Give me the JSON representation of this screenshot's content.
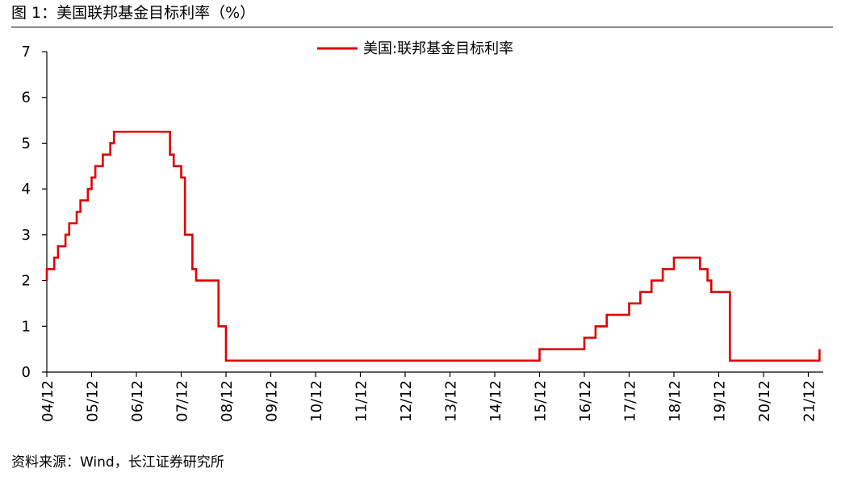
{
  "figure": {
    "title": "图 1：美国联邦基金目标利率（%）",
    "source": "资料来源：Wind，长江证券研究所"
  },
  "chart_data": {
    "type": "line",
    "title": "",
    "xlabel": "",
    "ylabel": "",
    "ylim": [
      0,
      7
    ],
    "yticks": [
      0,
      1,
      2,
      3,
      4,
      5,
      6,
      7
    ],
    "xlim": [
      "2004-12",
      "2022-04"
    ],
    "xticks": [
      "04/12",
      "05/12",
      "06/12",
      "07/12",
      "08/12",
      "09/12",
      "10/12",
      "11/12",
      "12/12",
      "13/12",
      "14/12",
      "15/12",
      "16/12",
      "17/12",
      "18/12",
      "19/12",
      "20/12",
      "21/12"
    ],
    "grid": false,
    "legend": "top-center",
    "step": true,
    "series": [
      {
        "name": "美国:联邦基金目标利率",
        "color": "#e00000",
        "points": [
          [
            "2004-12",
            2.0
          ],
          [
            "2004-12",
            2.25
          ],
          [
            "2005-02",
            2.5
          ],
          [
            "2005-03",
            2.75
          ],
          [
            "2005-05",
            3.0
          ],
          [
            "2005-06",
            3.25
          ],
          [
            "2005-08",
            3.5
          ],
          [
            "2005-09",
            3.75
          ],
          [
            "2005-11",
            4.0
          ],
          [
            "2005-12",
            4.25
          ],
          [
            "2006-01",
            4.5
          ],
          [
            "2006-03",
            4.75
          ],
          [
            "2006-05",
            5.0
          ],
          [
            "2006-06",
            5.25
          ],
          [
            "2007-09",
            4.75
          ],
          [
            "2007-10",
            4.5
          ],
          [
            "2007-12",
            4.25
          ],
          [
            "2008-01",
            3.5
          ],
          [
            "2008-01",
            3.0
          ],
          [
            "2008-03",
            2.25
          ],
          [
            "2008-04",
            2.0
          ],
          [
            "2008-10",
            1.5
          ],
          [
            "2008-10",
            1.0
          ],
          [
            "2008-12",
            0.25
          ],
          [
            "2015-12",
            0.5
          ],
          [
            "2016-12",
            0.75
          ],
          [
            "2017-03",
            1.0
          ],
          [
            "2017-06",
            1.25
          ],
          [
            "2017-12",
            1.5
          ],
          [
            "2018-03",
            1.75
          ],
          [
            "2018-06",
            2.0
          ],
          [
            "2018-09",
            2.25
          ],
          [
            "2018-12",
            2.5
          ],
          [
            "2019-07",
            2.25
          ],
          [
            "2019-09",
            2.0
          ],
          [
            "2019-10",
            1.75
          ],
          [
            "2020-03",
            1.25
          ],
          [
            "2020-03",
            0.25
          ],
          [
            "2022-03",
            0.25
          ],
          [
            "2022-03",
            0.5
          ]
        ]
      }
    ]
  }
}
